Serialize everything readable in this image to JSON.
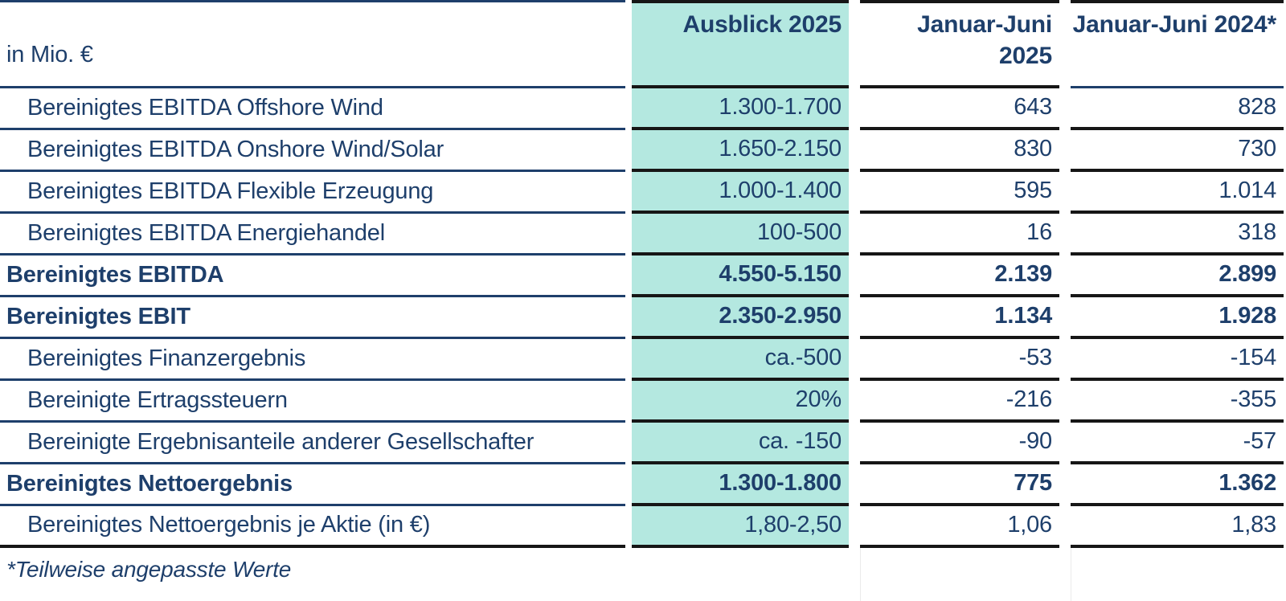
{
  "chart_data": {
    "type": "table",
    "unit_label": "in Mio. €",
    "columns": [
      {
        "label": "Ausblick 2025",
        "highlight": true
      },
      {
        "label": "Januar-Juni 2025",
        "highlight": false
      },
      {
        "label": "Januar-Juni 2024*",
        "highlight": false
      }
    ],
    "rows": [
      {
        "label": "Bereinigtes EBITDA Offshore Wind",
        "values": [
          "1.300-1.700",
          "643",
          "828"
        ],
        "bold": false
      },
      {
        "label": "Bereinigtes EBITDA Onshore Wind/Solar",
        "values": [
          "1.650-2.150",
          "830",
          "730"
        ],
        "bold": false
      },
      {
        "label": "Bereinigtes EBITDA Flexible Erzeugung",
        "values": [
          "1.000-1.400",
          "595",
          "1.014"
        ],
        "bold": false
      },
      {
        "label": "Bereinigtes EBITDA Energiehandel",
        "values": [
          "100-500",
          "16",
          "318"
        ],
        "bold": false
      },
      {
        "label": "Bereinigtes EBITDA",
        "values": [
          "4.550-5.150",
          "2.139",
          "2.899"
        ],
        "bold": true
      },
      {
        "label": "Bereinigtes EBIT",
        "values": [
          "2.350-2.950",
          "1.134",
          "1.928"
        ],
        "bold": true
      },
      {
        "label": "Bereinigtes Finanzergebnis",
        "values": [
          "ca.-500",
          "-53",
          "-154"
        ],
        "bold": false
      },
      {
        "label": "Bereinigte Ertragssteuern",
        "values": [
          "20%",
          "-216",
          "-355"
        ],
        "bold": false
      },
      {
        "label": "Bereinigte Ergebnisanteile anderer Gesellschafter",
        "values": [
          "ca. -150",
          "-90",
          "-57"
        ],
        "bold": false
      },
      {
        "label": "Bereinigtes Nettoergebnis",
        "values": [
          "1.300-1.800",
          "775",
          "1.362"
        ],
        "bold": true
      },
      {
        "label": "Bereinigtes Nettoergebnis je Aktie (in €)",
        "values": [
          "1,80-2,50",
          "1,06",
          "1,83"
        ],
        "bold": false
      }
    ],
    "footnote": "*Teilweise angepasste Werte",
    "layout_hints": {
      "highlight_column": "Ausblick 2025",
      "value_alignment": "right"
    }
  },
  "colors": {
    "highlight_teal": "#b4e8e0",
    "text_navy": "#1e3f6b",
    "line_dark": "#161616",
    "line_navy": "#1e3f6b"
  }
}
